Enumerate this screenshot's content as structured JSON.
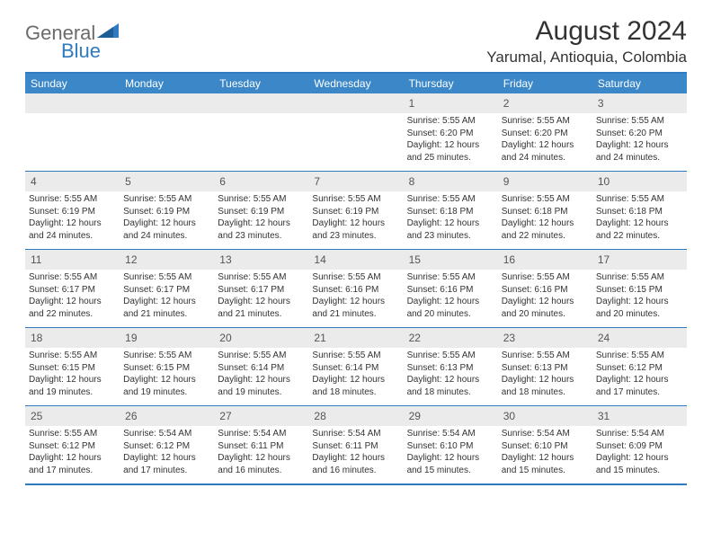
{
  "brand": {
    "part1": "General",
    "part2": "Blue"
  },
  "title": "August 2024",
  "location": "Yarumal, Antioquia, Colombia",
  "colors": {
    "header_bg": "#3b87c8",
    "border": "#2f7ac0",
    "daynum_bg": "#ebebeb",
    "text": "#333333",
    "logo_gray": "#6b6b6b",
    "logo_blue": "#2f7ac0"
  },
  "weekdays": [
    "Sunday",
    "Monday",
    "Tuesday",
    "Wednesday",
    "Thursday",
    "Friday",
    "Saturday"
  ],
  "weeks": [
    [
      null,
      null,
      null,
      null,
      {
        "n": "1",
        "sunrise": "5:55 AM",
        "sunset": "6:20 PM",
        "daylight": "12 hours and 25 minutes."
      },
      {
        "n": "2",
        "sunrise": "5:55 AM",
        "sunset": "6:20 PM",
        "daylight": "12 hours and 24 minutes."
      },
      {
        "n": "3",
        "sunrise": "5:55 AM",
        "sunset": "6:20 PM",
        "daylight": "12 hours and 24 minutes."
      }
    ],
    [
      {
        "n": "4",
        "sunrise": "5:55 AM",
        "sunset": "6:19 PM",
        "daylight": "12 hours and 24 minutes."
      },
      {
        "n": "5",
        "sunrise": "5:55 AM",
        "sunset": "6:19 PM",
        "daylight": "12 hours and 24 minutes."
      },
      {
        "n": "6",
        "sunrise": "5:55 AM",
        "sunset": "6:19 PM",
        "daylight": "12 hours and 23 minutes."
      },
      {
        "n": "7",
        "sunrise": "5:55 AM",
        "sunset": "6:19 PM",
        "daylight": "12 hours and 23 minutes."
      },
      {
        "n": "8",
        "sunrise": "5:55 AM",
        "sunset": "6:18 PM",
        "daylight": "12 hours and 23 minutes."
      },
      {
        "n": "9",
        "sunrise": "5:55 AM",
        "sunset": "6:18 PM",
        "daylight": "12 hours and 22 minutes."
      },
      {
        "n": "10",
        "sunrise": "5:55 AM",
        "sunset": "6:18 PM",
        "daylight": "12 hours and 22 minutes."
      }
    ],
    [
      {
        "n": "11",
        "sunrise": "5:55 AM",
        "sunset": "6:17 PM",
        "daylight": "12 hours and 22 minutes."
      },
      {
        "n": "12",
        "sunrise": "5:55 AM",
        "sunset": "6:17 PM",
        "daylight": "12 hours and 21 minutes."
      },
      {
        "n": "13",
        "sunrise": "5:55 AM",
        "sunset": "6:17 PM",
        "daylight": "12 hours and 21 minutes."
      },
      {
        "n": "14",
        "sunrise": "5:55 AM",
        "sunset": "6:16 PM",
        "daylight": "12 hours and 21 minutes."
      },
      {
        "n": "15",
        "sunrise": "5:55 AM",
        "sunset": "6:16 PM",
        "daylight": "12 hours and 20 minutes."
      },
      {
        "n": "16",
        "sunrise": "5:55 AM",
        "sunset": "6:16 PM",
        "daylight": "12 hours and 20 minutes."
      },
      {
        "n": "17",
        "sunrise": "5:55 AM",
        "sunset": "6:15 PM",
        "daylight": "12 hours and 20 minutes."
      }
    ],
    [
      {
        "n": "18",
        "sunrise": "5:55 AM",
        "sunset": "6:15 PM",
        "daylight": "12 hours and 19 minutes."
      },
      {
        "n": "19",
        "sunrise": "5:55 AM",
        "sunset": "6:15 PM",
        "daylight": "12 hours and 19 minutes."
      },
      {
        "n": "20",
        "sunrise": "5:55 AM",
        "sunset": "6:14 PM",
        "daylight": "12 hours and 19 minutes."
      },
      {
        "n": "21",
        "sunrise": "5:55 AM",
        "sunset": "6:14 PM",
        "daylight": "12 hours and 18 minutes."
      },
      {
        "n": "22",
        "sunrise": "5:55 AM",
        "sunset": "6:13 PM",
        "daylight": "12 hours and 18 minutes."
      },
      {
        "n": "23",
        "sunrise": "5:55 AM",
        "sunset": "6:13 PM",
        "daylight": "12 hours and 18 minutes."
      },
      {
        "n": "24",
        "sunrise": "5:55 AM",
        "sunset": "6:12 PM",
        "daylight": "12 hours and 17 minutes."
      }
    ],
    [
      {
        "n": "25",
        "sunrise": "5:55 AM",
        "sunset": "6:12 PM",
        "daylight": "12 hours and 17 minutes."
      },
      {
        "n": "26",
        "sunrise": "5:54 AM",
        "sunset": "6:12 PM",
        "daylight": "12 hours and 17 minutes."
      },
      {
        "n": "27",
        "sunrise": "5:54 AM",
        "sunset": "6:11 PM",
        "daylight": "12 hours and 16 minutes."
      },
      {
        "n": "28",
        "sunrise": "5:54 AM",
        "sunset": "6:11 PM",
        "daylight": "12 hours and 16 minutes."
      },
      {
        "n": "29",
        "sunrise": "5:54 AM",
        "sunset": "6:10 PM",
        "daylight": "12 hours and 15 minutes."
      },
      {
        "n": "30",
        "sunrise": "5:54 AM",
        "sunset": "6:10 PM",
        "daylight": "12 hours and 15 minutes."
      },
      {
        "n": "31",
        "sunrise": "5:54 AM",
        "sunset": "6:09 PM",
        "daylight": "12 hours and 15 minutes."
      }
    ]
  ],
  "labels": {
    "sunrise": "Sunrise:",
    "sunset": "Sunset:",
    "daylight": "Daylight:"
  }
}
